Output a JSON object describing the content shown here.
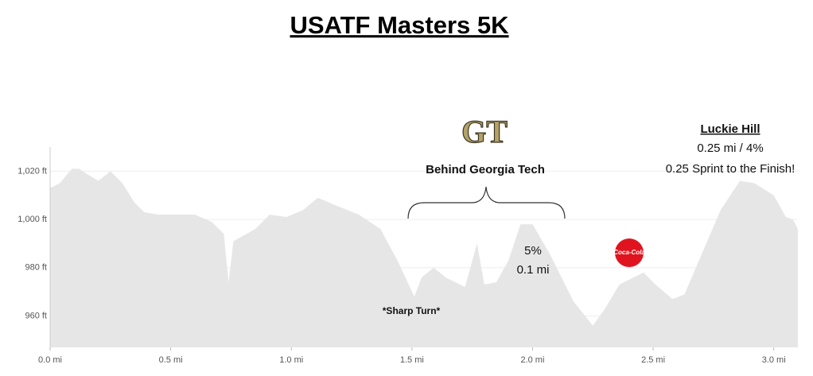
{
  "chart_data": {
    "type": "area",
    "title": "USATF Masters 5K",
    "color": "#e6e6e6",
    "x": [
      0,
      0.04,
      0.09,
      0.12,
      0.15,
      0.2,
      0.25,
      0.3,
      0.35,
      0.39,
      0.45,
      0.6,
      0.67,
      0.72,
      0.74,
      0.76,
      0.85,
      0.91,
      0.98,
      1.05,
      1.11,
      1.18,
      1.28,
      1.37,
      1.44,
      1.51,
      1.54,
      1.59,
      1.64,
      1.72,
      1.77,
      1.8,
      1.85,
      1.9,
      1.95,
      2.0,
      2.07,
      2.17,
      2.25,
      2.3,
      2.36,
      2.46,
      2.51,
      2.58,
      2.63,
      2.69,
      2.78,
      2.86,
      2.92,
      3.0,
      3.05,
      3.08,
      3.1
    ],
    "values": [
      1013,
      1015,
      1021,
      1021,
      1019,
      1016,
      1020,
      1015,
      1007,
      1003,
      1002,
      1002,
      999,
      994,
      974,
      991,
      996,
      1002,
      1001,
      1004,
      1009,
      1006,
      1002,
      996,
      983,
      968,
      976,
      980,
      976,
      972,
      990,
      973,
      974,
      983,
      998,
      998,
      986,
      966,
      956,
      963,
      973,
      978,
      973,
      967,
      969,
      983,
      1004,
      1016,
      1015,
      1010,
      1001,
      1000,
      996
    ],
    "xlim": [
      0,
      3.1
    ],
    "ylim": [
      947,
      1030
    ],
    "xticks": [
      {
        "value": 0,
        "label": "0.0 mi"
      },
      {
        "value": 0.5,
        "label": "0.5 mi"
      },
      {
        "value": 1,
        "label": "1.0 mi"
      },
      {
        "value": 1.5,
        "label": "1.5 mi"
      },
      {
        "value": 2,
        "label": "2.0 mi"
      },
      {
        "value": 2.5,
        "label": "2.5 mi"
      },
      {
        "value": 3,
        "label": "3.0 mi"
      }
    ],
    "yticks": [
      {
        "value": 960,
        "label": "960 ft"
      },
      {
        "value": 980,
        "label": "980 ft"
      },
      {
        "value": 1000,
        "label": "1,000 ft"
      },
      {
        "value": 1020,
        "label": "1,020 ft"
      }
    ],
    "grid": true,
    "annotations": [
      "GT",
      "Behind Georgia Tech",
      "Luckie Hill",
      "0.25 mi / 4%",
      "0.25 Sprint to the Finish!",
      "5%",
      "0.1 mi",
      "*Sharp Turn*",
      "Coca-Cola"
    ]
  }
}
